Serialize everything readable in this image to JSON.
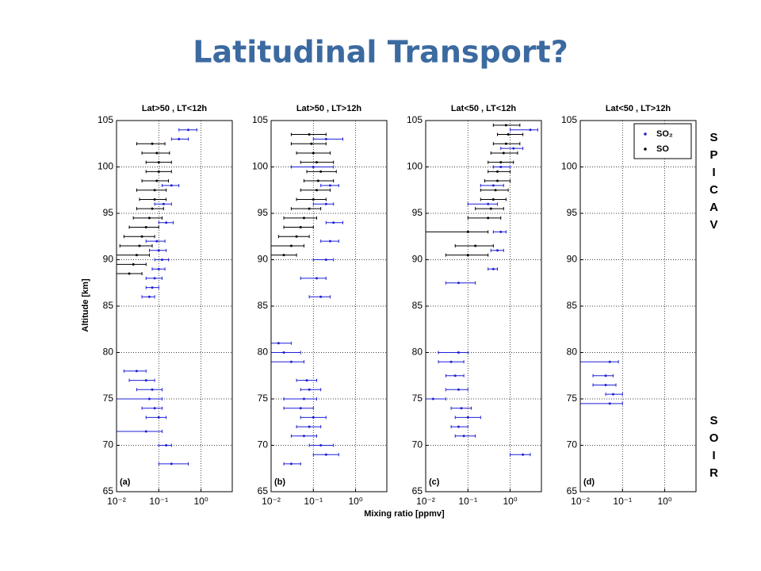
{
  "title": "Latitudinal Transport?",
  "y_label": "Altitude [km]",
  "x_label": "Mixing ratio [ppmv]",
  "side_labels": [
    "SPICAV",
    "SOIR"
  ],
  "chart_data": [
    {
      "type": "scatter",
      "title": "Lat>50 , LT<12h",
      "label": "(a)",
      "xscale": "log",
      "grid": true,
      "xlim": [
        0.01,
        5.5
      ],
      "xticks": [
        {
          "value": 0.01,
          "label": "10⁻²"
        },
        {
          "value": 0.1,
          "label": "10⁻¹"
        },
        {
          "value": 1,
          "label": "10⁰"
        }
      ],
      "ylim": [
        65,
        105
      ],
      "yticks": [
        65,
        70,
        75,
        80,
        85,
        90,
        95,
        100,
        105
      ],
      "series": [
        {
          "name": "SO₂",
          "color": "#1f1fd6",
          "values": [
            86,
            87,
            88,
            89,
            90,
            91,
            92,
            94,
            96,
            98,
            103,
            104,
            78,
            77,
            76,
            75,
            74,
            73,
            71.5,
            70,
            68
          ],
          "x": [
            0.06,
            0.07,
            0.08,
            0.1,
            0.12,
            0.1,
            0.09,
            0.15,
            0.13,
            0.2,
            0.3,
            0.5,
            0.03,
            0.05,
            0.07,
            0.06,
            0.08,
            0.1,
            0.05,
            0.15,
            0.2
          ],
          "x_low": [
            0.04,
            0.05,
            0.05,
            0.07,
            0.08,
            0.06,
            0.05,
            0.1,
            0.08,
            0.12,
            0.2,
            0.3,
            0.015,
            0.02,
            0.03,
            0.01,
            0.04,
            0.05,
            0.01,
            0.1,
            0.1
          ],
          "x_high": [
            0.08,
            0.1,
            0.12,
            0.14,
            0.17,
            0.15,
            0.14,
            0.22,
            0.2,
            0.3,
            0.5,
            0.8,
            0.05,
            0.08,
            0.12,
            0.12,
            0.12,
            0.15,
            0.12,
            0.2,
            0.5
          ]
        },
        {
          "name": "SO",
          "color": "#000000",
          "values": [
            88.5,
            89.5,
            90.5,
            91.5,
            92.5,
            93.5,
            94.5,
            95.5,
            96.5,
            97.5,
            98.5,
            99.5,
            100.5,
            101.5,
            102.5
          ],
          "x": [
            0.02,
            0.025,
            0.03,
            0.035,
            0.04,
            0.05,
            0.06,
            0.07,
            0.08,
            0.08,
            0.09,
            0.1,
            0.1,
            0.09,
            0.07
          ],
          "x_low": [
            0.01,
            0.01,
            0.01,
            0.012,
            0.015,
            0.02,
            0.025,
            0.03,
            0.035,
            0.03,
            0.04,
            0.05,
            0.05,
            0.04,
            0.03
          ],
          "x_high": [
            0.04,
            0.05,
            0.06,
            0.07,
            0.08,
            0.1,
            0.12,
            0.13,
            0.15,
            0.15,
            0.17,
            0.2,
            0.2,
            0.18,
            0.14
          ]
        }
      ]
    },
    {
      "type": "scatter",
      "title": "Lat>50 , LT>12h",
      "label": "(b)",
      "xscale": "log",
      "grid": true,
      "xlim": [
        0.01,
        5.5
      ],
      "xticks": [
        {
          "value": 0.01,
          "label": "10⁻²"
        },
        {
          "value": 0.1,
          "label": "10⁻¹"
        },
        {
          "value": 1,
          "label": "10⁰"
        }
      ],
      "ylim": [
        65,
        105
      ],
      "yticks": [
        65,
        70,
        75,
        80,
        85,
        90,
        95,
        100,
        105
      ],
      "series": [
        {
          "name": "SO₂",
          "color": "#1f1fd6",
          "values": [
            86,
            88,
            90,
            92,
            94,
            96,
            98,
            100,
            103,
            81,
            80,
            79,
            77,
            76,
            75,
            74,
            73,
            72,
            71,
            70,
            69,
            68
          ],
          "x": [
            0.15,
            0.12,
            0.2,
            0.25,
            0.3,
            0.2,
            0.25,
            0.1,
            0.2,
            0.015,
            0.02,
            0.03,
            0.07,
            0.08,
            0.06,
            0.05,
            0.1,
            0.08,
            0.06,
            0.15,
            0.2,
            0.03
          ],
          "x_low": [
            0.08,
            0.05,
            0.1,
            0.15,
            0.2,
            0.1,
            0.15,
            0.03,
            0.1,
            0.01,
            0.01,
            0.01,
            0.04,
            0.05,
            0.02,
            0.02,
            0.05,
            0.04,
            0.03,
            0.08,
            0.1,
            0.02
          ],
          "x_high": [
            0.25,
            0.2,
            0.3,
            0.4,
            0.5,
            0.3,
            0.4,
            0.3,
            0.5,
            0.03,
            0.05,
            0.06,
            0.12,
            0.15,
            0.12,
            0.1,
            0.2,
            0.15,
            0.12,
            0.3,
            0.4,
            0.05
          ]
        },
        {
          "name": "SO",
          "color": "#000000",
          "values": [
            90.5,
            91.5,
            92.5,
            93.5,
            94.5,
            95.5,
            96.5,
            97.5,
            98.5,
            99.5,
            100.5,
            101.5,
            102.5,
            103.5
          ],
          "x": [
            0.02,
            0.03,
            0.04,
            0.05,
            0.06,
            0.08,
            0.1,
            0.12,
            0.13,
            0.15,
            0.12,
            0.1,
            0.09,
            0.08
          ],
          "x_low": [
            0.01,
            0.01,
            0.015,
            0.02,
            0.02,
            0.03,
            0.04,
            0.05,
            0.06,
            0.07,
            0.05,
            0.04,
            0.03,
            0.03
          ],
          "x_high": [
            0.04,
            0.06,
            0.08,
            0.1,
            0.12,
            0.15,
            0.2,
            0.25,
            0.3,
            0.35,
            0.3,
            0.25,
            0.2,
            0.2
          ]
        }
      ]
    },
    {
      "type": "scatter",
      "title": "Lat<50 , LT<12h",
      "label": "(c)",
      "xscale": "log",
      "grid": true,
      "xlim": [
        0.01,
        5.5
      ],
      "xticks": [
        {
          "value": 0.01,
          "label": "10⁻²"
        },
        {
          "value": 0.1,
          "label": "10⁻¹"
        },
        {
          "value": 1,
          "label": "10⁰"
        }
      ],
      "ylim": [
        65,
        105
      ],
      "yticks": [
        65,
        70,
        75,
        80,
        85,
        90,
        95,
        100,
        105
      ],
      "series": [
        {
          "name": "SO₂",
          "color": "#1f1fd6",
          "values": [
            87.5,
            89,
            91,
            93,
            96,
            98,
            100,
            102,
            104,
            80,
            79,
            77.5,
            76,
            75,
            74,
            73,
            72,
            71,
            69
          ],
          "x": [
            0.06,
            0.4,
            0.5,
            0.6,
            0.3,
            0.4,
            0.6,
            1.2,
            3,
            0.06,
            0.04,
            0.05,
            0.06,
            0.015,
            0.07,
            0.1,
            0.06,
            0.08,
            2
          ],
          "x_low": [
            0.03,
            0.3,
            0.35,
            0.4,
            0.1,
            0.2,
            0.4,
            0.6,
            1,
            0.02,
            0.02,
            0.03,
            0.03,
            0.01,
            0.04,
            0.05,
            0.04,
            0.05,
            1
          ],
          "x_high": [
            0.15,
            0.5,
            0.7,
            0.8,
            0.5,
            0.7,
            1,
            2,
            4.5,
            0.1,
            0.08,
            0.08,
            0.1,
            0.03,
            0.12,
            0.2,
            0.1,
            0.15,
            3
          ]
        },
        {
          "name": "SO",
          "color": "#000000",
          "values": [
            90.5,
            91.5,
            93,
            94.5,
            95.5,
            96.5,
            97.5,
            98.5,
            99.5,
            100.5,
            101.5,
            102.5,
            103.5,
            104.5
          ],
          "x": [
            0.1,
            0.15,
            0.1,
            0.3,
            0.35,
            0.4,
            0.45,
            0.5,
            0.5,
            0.6,
            0.7,
            0.8,
            0.9,
            0.8
          ],
          "x_low": [
            0.03,
            0.05,
            0.01,
            0.1,
            0.15,
            0.2,
            0.2,
            0.25,
            0.3,
            0.3,
            0.35,
            0.4,
            0.5,
            0.4
          ],
          "x_high": [
            0.3,
            0.4,
            0.3,
            0.6,
            0.7,
            0.8,
            0.9,
            1,
            1,
            1.2,
            1.5,
            1.7,
            2,
            1.7
          ]
        }
      ]
    },
    {
      "type": "scatter",
      "title": "Lat<50 , LT>12h",
      "label": "(d)",
      "xscale": "log",
      "grid": true,
      "legend": "upper right",
      "xlim": [
        0.01,
        5.5
      ],
      "xticks": [
        {
          "value": 0.01,
          "label": "10⁻²"
        },
        {
          "value": 0.1,
          "label": "10⁻¹"
        },
        {
          "value": 1,
          "label": "10⁰"
        }
      ],
      "ylim": [
        65,
        105
      ],
      "yticks": [
        65,
        70,
        75,
        80,
        85,
        90,
        95,
        100,
        105
      ],
      "series": [
        {
          "name": "SO₂",
          "color": "#1f1fd6",
          "values": [
            79,
            77.5,
            76.5,
            75.5,
            74.5
          ],
          "x": [
            0.05,
            0.04,
            0.04,
            0.06,
            0.05
          ],
          "x_low": [
            0.01,
            0.02,
            0.02,
            0.04,
            0.01
          ],
          "x_high": [
            0.08,
            0.06,
            0.07,
            0.1,
            0.1
          ]
        },
        {
          "name": "SO",
          "color": "#000000",
          "values": [],
          "x": [],
          "x_low": [],
          "x_high": []
        }
      ]
    }
  ]
}
